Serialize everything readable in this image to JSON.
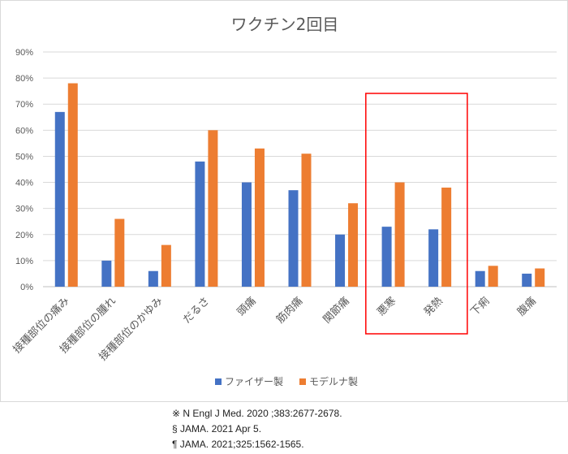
{
  "chart_data": {
    "type": "bar",
    "title": "ワクチン2回目",
    "xlabel": "",
    "ylabel": "",
    "ylim": [
      0,
      90
    ],
    "y_ticks": [
      "0%",
      "10%",
      "20%",
      "30%",
      "40%",
      "50%",
      "60%",
      "70%",
      "80%",
      "90%"
    ],
    "grid": true,
    "legend_position": "bottom",
    "categories": [
      "接種部位の痛み",
      "接種部位の腫れ",
      "接種部位のかゆみ",
      "だるさ",
      "頭痛",
      "筋肉痛",
      "関節痛",
      "悪寒",
      "発熱",
      "下痢",
      "腹痛"
    ],
    "series": [
      {
        "name": "ファイザー製",
        "color": "#4472c4",
        "values": [
          67,
          10,
          6,
          48,
          40,
          37,
          20,
          23,
          22,
          6,
          5
        ]
      },
      {
        "name": "モデルナ製",
        "color": "#ed7d31",
        "values": [
          78,
          26,
          16,
          60,
          53,
          51,
          32,
          40,
          38,
          8,
          7
        ]
      }
    ],
    "highlight": {
      "categories": [
        "悪寒",
        "発熱"
      ],
      "color": "#ff0000"
    }
  },
  "citations": [
    "※ N Engl J Med. 2020 ;383:2677-2678.",
    "§ JAMA. 2021 Apr 5.",
    "¶ JAMA. 2021;325:1562-1565."
  ]
}
